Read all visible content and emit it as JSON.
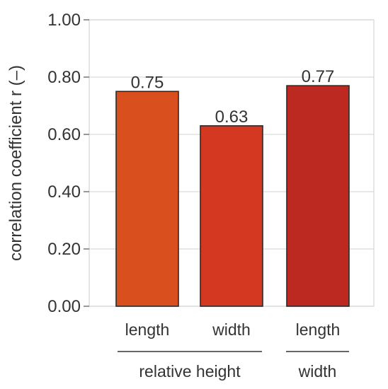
{
  "chart_data": {
    "type": "bar",
    "categories": [
      "length",
      "width",
      "length"
    ],
    "groups": [
      {
        "label": "relative height",
        "members": [
          0,
          1
        ]
      },
      {
        "label": "width",
        "members": [
          2
        ]
      }
    ],
    "values": [
      0.75,
      0.63,
      0.77
    ],
    "value_labels": [
      "0.75",
      "0.63",
      "0.77"
    ],
    "bar_colors": [
      "#D9501E",
      "#D43820",
      "#BB2921"
    ],
    "ylabel": "correlation coefficient r (–)",
    "ylim": [
      0,
      1
    ],
    "yticks": [
      "0.00",
      "0.20",
      "0.40",
      "0.60",
      "0.80",
      "1.00"
    ],
    "grid": true,
    "legend": "none"
  }
}
